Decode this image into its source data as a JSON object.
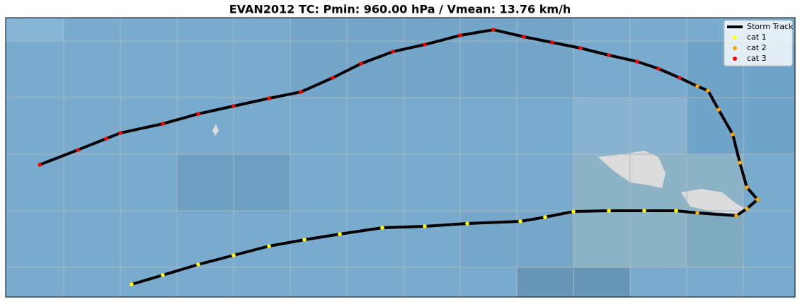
{
  "chart_data": {
    "type": "map-track",
    "title": "EVAN2012 TC: Pmin: 960.00 hPa / Vmean: 13.76 km/h",
    "xlim": [
      -180,
      -168.85
    ],
    "ylim": [
      -15.45,
      -11.5
    ],
    "legend": "upper right",
    "series": [
      {
        "name": "Storm Track",
        "color": "#000000",
        "type": "line",
        "x": [
          -178.22,
          -177.78,
          -177.28,
          -176.78,
          -176.28,
          -175.78,
          -175.28,
          -174.68,
          -174.08,
          -173.48,
          -172.73,
          -172.38,
          -171.98,
          -171.48,
          -170.98,
          -170.53,
          -170.23,
          -169.68,
          -169.53,
          -169.38,
          -169.53,
          -169.63,
          -169.73,
          -169.93,
          -170.08,
          -170.23,
          -170.48,
          -170.78,
          -171.08,
          -171.48,
          -171.88,
          -172.28,
          -172.68,
          -173.11,
          -173.58,
          -174.08,
          -174.53,
          -174.98,
          -175.38,
          -175.83,
          -176.28,
          -176.78,
          -177.28,
          -177.78,
          -178.38,
          -178.58,
          -178.98,
          -179.52
        ],
        "y": [
          -15.27,
          -15.14,
          -14.99,
          -14.86,
          -14.73,
          -14.64,
          -14.56,
          -14.47,
          -14.45,
          -14.41,
          -14.38,
          -14.32,
          -14.24,
          -14.23,
          -14.23,
          -14.23,
          -14.26,
          -14.3,
          -14.2,
          -14.07,
          -13.9,
          -13.55,
          -13.15,
          -12.8,
          -12.53,
          -12.47,
          -12.35,
          -12.22,
          -12.12,
          -12.03,
          -11.93,
          -11.85,
          -11.77,
          -11.67,
          -11.75,
          -11.88,
          -11.98,
          -12.15,
          -12.35,
          -12.55,
          -12.64,
          -12.75,
          -12.86,
          -13.0,
          -13.13,
          -13.21,
          -13.37,
          -13.58
        ]
      },
      {
        "name": "cat 1",
        "color": "#ffff00",
        "type": "scatter",
        "x": [
          -178.22,
          -177.78,
          -177.28,
          -176.78,
          -176.28,
          -175.78,
          -175.28,
          -174.68,
          -174.08,
          -173.48,
          -172.73,
          -172.38,
          -171.98,
          -171.48,
          -170.98,
          -170.53
        ],
        "y": [
          -15.27,
          -15.14,
          -14.99,
          -14.86,
          -14.73,
          -14.64,
          -14.56,
          -14.47,
          -14.45,
          -14.41,
          -14.38,
          -14.32,
          -14.24,
          -14.23,
          -14.23,
          -14.23
        ]
      },
      {
        "name": "cat 2",
        "color": "#ffa500",
        "type": "scatter",
        "x": [
          -170.23,
          -169.68,
          -169.53,
          -169.38,
          -169.53,
          -169.63,
          -169.73,
          -169.93,
          -170.08,
          -170.23
        ],
        "y": [
          -14.26,
          -14.3,
          -14.2,
          -14.07,
          -13.9,
          -13.55,
          -13.15,
          -12.8,
          -12.53,
          -12.47
        ]
      },
      {
        "name": "cat 3",
        "color": "#ff0000",
        "type": "scatter",
        "x": [
          -170.48,
          -170.78,
          -171.08,
          -171.48,
          -171.88,
          -172.28,
          -172.68,
          -173.11,
          -173.58,
          -174.08,
          -174.53,
          -174.98,
          -175.38,
          -175.83,
          -176.28,
          -176.78,
          -177.28,
          -177.78,
          -178.38,
          -178.58,
          -178.98,
          -179.52
        ],
        "y": [
          -12.35,
          -12.22,
          -12.12,
          -12.03,
          -11.93,
          -11.85,
          -11.77,
          -11.67,
          -11.75,
          -11.88,
          -11.98,
          -12.15,
          -12.35,
          -12.55,
          -12.64,
          -12.75,
          -12.86,
          -13.0,
          -13.13,
          -13.21,
          -13.37,
          -13.58
        ]
      }
    ]
  }
}
